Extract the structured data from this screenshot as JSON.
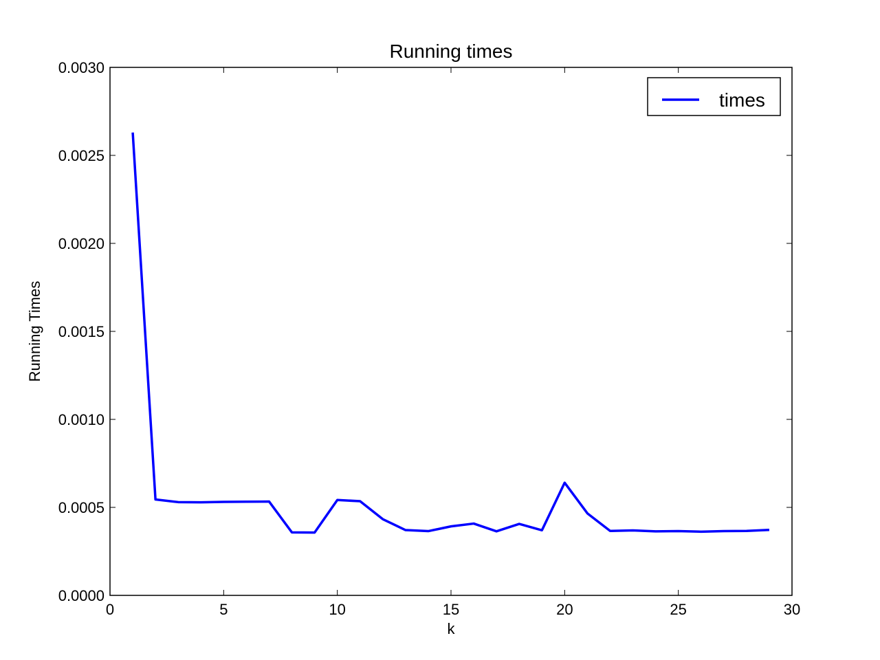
{
  "chart_data": {
    "type": "line",
    "title": "Running times",
    "xlabel": "k",
    "ylabel": "Running Times",
    "xlim": [
      0,
      30
    ],
    "ylim": [
      0,
      0.003
    ],
    "x_ticks": [
      0,
      5,
      10,
      15,
      20,
      25,
      30
    ],
    "x_tick_labels": [
      "0",
      "5",
      "10",
      "15",
      "20",
      "25",
      "30"
    ],
    "y_ticks": [
      0,
      0.0005,
      0.001,
      0.0015,
      0.002,
      0.0025,
      0.003
    ],
    "y_tick_labels": [
      "0.0000",
      "0.0005",
      "0.0010",
      "0.0015",
      "0.0020",
      "0.0025",
      "0.0030"
    ],
    "grid": false,
    "legend_position": "top-right",
    "x": [
      1,
      2,
      3,
      4,
      5,
      6,
      7,
      8,
      9,
      10,
      11,
      12,
      13,
      14,
      15,
      16,
      17,
      18,
      19,
      20,
      21,
      22,
      23,
      24,
      25,
      26,
      27,
      28,
      29
    ],
    "series": [
      {
        "name": "times",
        "color": "#0000ff",
        "values": [
          0.00263,
          0.000545,
          0.00053,
          0.000529,
          0.000531,
          0.000532,
          0.000533,
          0.000358,
          0.000357,
          0.000542,
          0.000535,
          0.000433,
          0.000371,
          0.000365,
          0.000392,
          0.000408,
          0.000364,
          0.000406,
          0.00037,
          0.00064,
          0.000466,
          0.000366,
          0.000369,
          0.000364,
          0.000365,
          0.000362,
          0.000365,
          0.000366,
          0.000372
        ]
      }
    ]
  }
}
